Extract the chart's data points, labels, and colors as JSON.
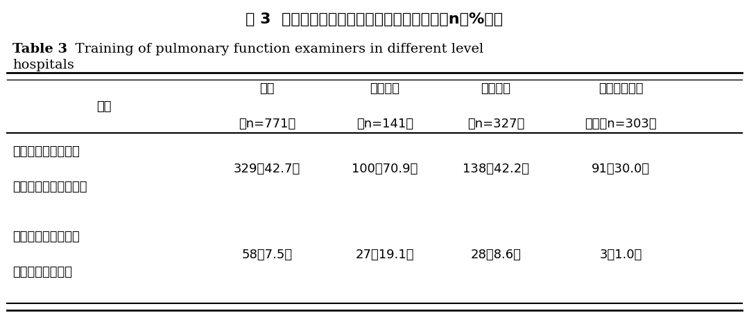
{
  "title_zh": "表 3  不同级别医院肺功能检查人员培训情况［n（%）］",
  "title_en_bold": "Table 3",
  "title_en_rest": "  Training of pulmonary function examiners in different level",
  "title_en_line2": "hospitals",
  "header_col0": "培训",
  "header_cols": [
    [
      "总数",
      "（n=771）"
    ],
    [
      "三级医院",
      "（n=141）"
    ],
    [
      "二级医院",
      "（n=327）"
    ],
    [
      "一级或未定级",
      "医院（n=303）"
    ]
  ],
  "rows": [
    {
      "label": [
        "短期培训（相关学术",
        "会议、专题培训班等）"
      ],
      "values": [
        "329（42.7）",
        "100（70.9）",
        "138（42.2）",
        "91（30.0）"
      ]
    },
    {
      "label": [
        "长期培训（相关单位",
        "进行肺功能培训）"
      ],
      "values": [
        "58（7.5）",
        "27（19.1）",
        "28（8.6）",
        "3（1.0）"
      ]
    }
  ],
  "bg_color": "#ffffff",
  "text_color": "#000000",
  "line_color": "#000000"
}
